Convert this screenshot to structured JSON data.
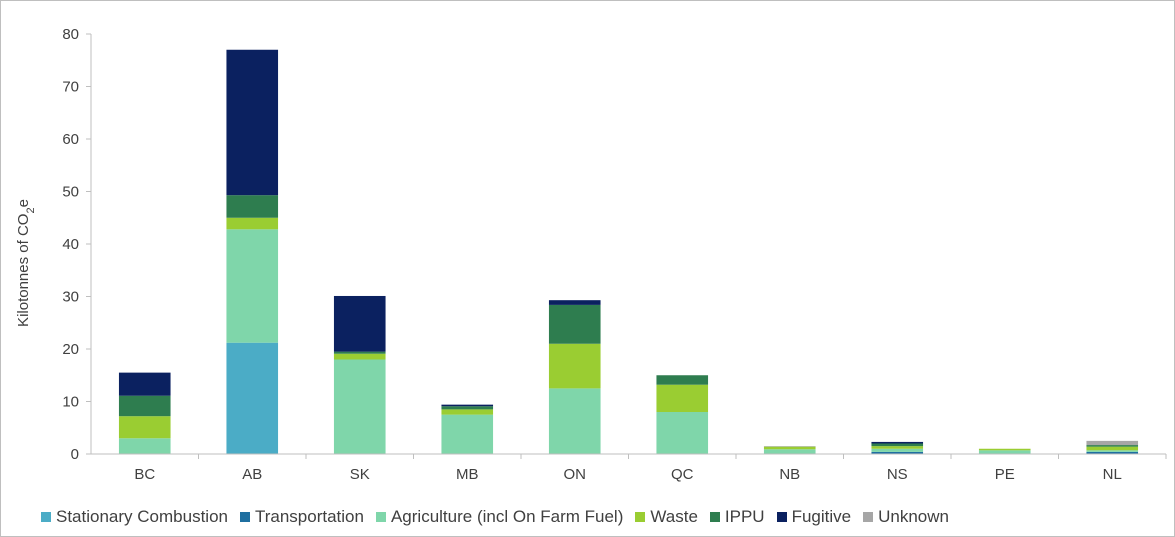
{
  "chart_data": {
    "type": "bar",
    "stacked": true,
    "title": "",
    "xlabel": "",
    "ylabel_main": "Kilotonnes of CO",
    "ylabel_sub": "2",
    "ylabel_suffix": "e",
    "ylim": [
      0,
      80
    ],
    "yticks": [
      "0",
      "10",
      "20",
      "30",
      "40",
      "50",
      "60",
      "70",
      "80"
    ],
    "grid": false,
    "legend_position": "bottom",
    "categories": [
      "BC",
      "AB",
      "SK",
      "MB",
      "ON",
      "QC",
      "NB",
      "NS",
      "PE",
      "NL"
    ],
    "series": [
      {
        "name": "Stationary Combustion",
        "color": "#4bacc6",
        "values": [
          0,
          21.2,
          0,
          0,
          0,
          0,
          0,
          0,
          0,
          0
        ]
      },
      {
        "name": "Transportation",
        "color": "#1f6fa0",
        "values": [
          0,
          0,
          0,
          0,
          0,
          0,
          0,
          0.4,
          0,
          0.4
        ]
      },
      {
        "name": "Agriculture (incl On Farm Fuel)",
        "color": "#7fd6aa",
        "values": [
          3.0,
          21.6,
          18.0,
          7.5,
          12.5,
          8.0,
          0.9,
          0.6,
          0.7,
          0.3
        ]
      },
      {
        "name": "Waste",
        "color": "#9acd32",
        "values": [
          4.2,
          2.2,
          1.1,
          1.0,
          8.5,
          5.2,
          0.5,
          0.5,
          0.3,
          0.7
        ]
      },
      {
        "name": "IPPU",
        "color": "#2e7d4f",
        "values": [
          3.9,
          4.3,
          0.4,
          0.6,
          7.4,
          1.8,
          0,
          0.5,
          0,
          0.3
        ]
      },
      {
        "name": "Fugitive",
        "color": "#0b2160",
        "values": [
          4.4,
          27.7,
          10.6,
          0.3,
          0.9,
          0,
          0,
          0.3,
          0,
          0
        ]
      },
      {
        "name": "Unknown",
        "color": "#a6a6a6",
        "values": [
          0,
          0,
          0,
          0,
          0,
          0,
          0.1,
          0,
          0,
          0.8
        ]
      }
    ]
  }
}
